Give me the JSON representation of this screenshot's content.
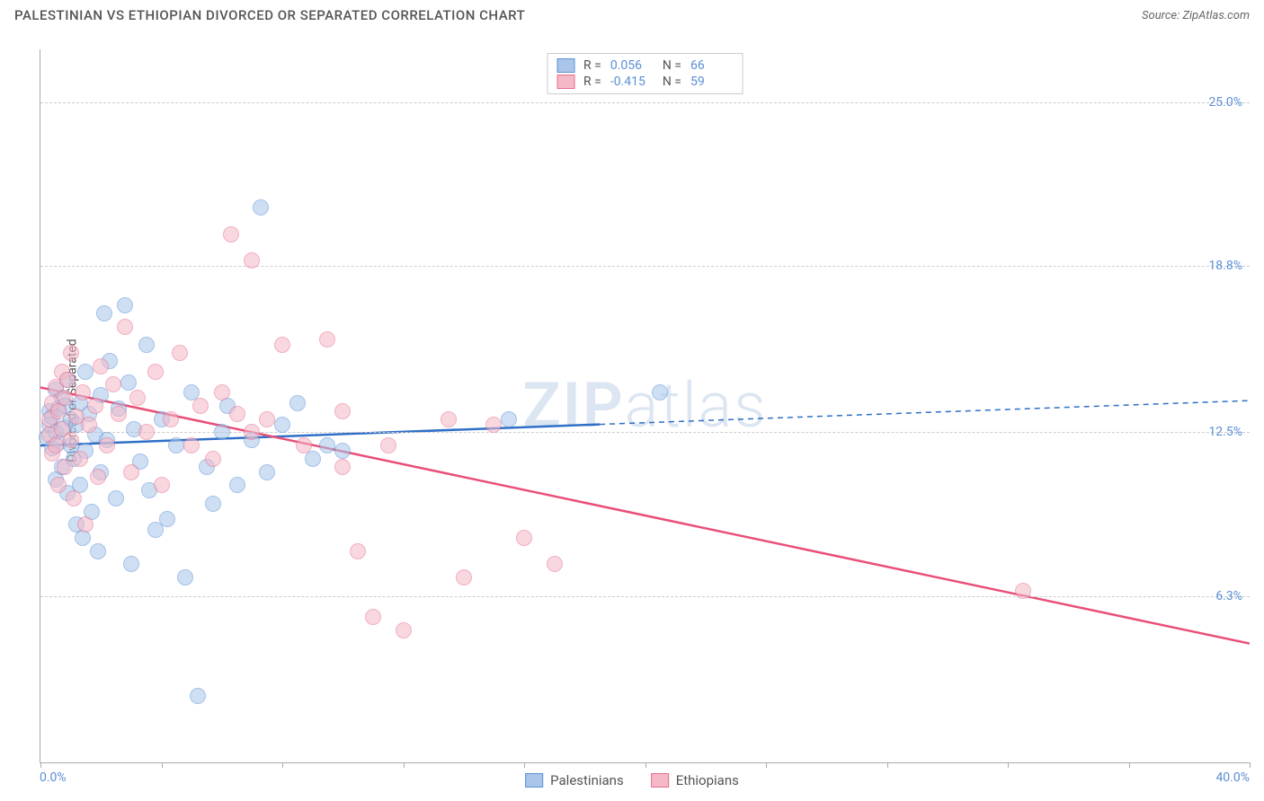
{
  "header": {
    "title": "PALESTINIAN VS ETHIOPIAN DIVORCED OR SEPARATED CORRELATION CHART",
    "source_prefix": "Source: ",
    "source_name": "ZipAtlas.com"
  },
  "chart": {
    "type": "scatter",
    "ylabel": "Divorced or Separated",
    "xlim": [
      0,
      40
    ],
    "ylim": [
      0,
      27
    ],
    "x_axis_min_label": "0.0%",
    "x_axis_max_label": "40.0%",
    "y_ticks": [
      {
        "v": 6.3,
        "label": "6.3%"
      },
      {
        "v": 12.5,
        "label": "12.5%"
      },
      {
        "v": 18.8,
        "label": "18.8%"
      },
      {
        "v": 25.0,
        "label": "25.0%"
      }
    ],
    "x_tick_positions": [
      0,
      4,
      8,
      12,
      16,
      20,
      24,
      28,
      32,
      36,
      40
    ],
    "grid_color": "#cccccc",
    "axis_color": "#aaaaaa",
    "tick_label_color": "#5b8fd6",
    "background_color": "#ffffff",
    "marker_radius": 9,
    "marker_opacity": 0.55,
    "series": [
      {
        "name": "Palestinians",
        "color_fill": "#a9c6ea",
        "color_stroke": "#5b8fd6",
        "R": "0.056",
        "N": "66",
        "regression": {
          "x1": 0,
          "y1": 12.0,
          "x_solid_end": 18.5,
          "y_solid_end": 12.8,
          "x2": 40,
          "y2": 13.7,
          "stroke": "#2f6fc7",
          "width": 2.5
        },
        "points": [
          [
            0.2,
            12.3
          ],
          [
            0.3,
            13.3
          ],
          [
            0.3,
            12.8
          ],
          [
            0.4,
            11.9
          ],
          [
            0.4,
            13.1
          ],
          [
            0.5,
            12.5
          ],
          [
            0.5,
            14.1
          ],
          [
            0.5,
            10.7
          ],
          [
            0.6,
            13.4
          ],
          [
            0.6,
            12.1
          ],
          [
            0.7,
            13.8
          ],
          [
            0.7,
            11.2
          ],
          [
            0.8,
            12.7
          ],
          [
            0.8,
            13.5
          ],
          [
            0.9,
            10.2
          ],
          [
            0.9,
            14.5
          ],
          [
            1.0,
            12.0
          ],
          [
            1.0,
            13.0
          ],
          [
            1.1,
            11.5
          ],
          [
            1.2,
            12.8
          ],
          [
            1.2,
            9.0
          ],
          [
            1.3,
            13.6
          ],
          [
            1.3,
            10.5
          ],
          [
            1.4,
            8.5
          ],
          [
            1.5,
            14.8
          ],
          [
            1.5,
            11.8
          ],
          [
            1.6,
            13.2
          ],
          [
            1.7,
            9.5
          ],
          [
            1.8,
            12.4
          ],
          [
            1.9,
            8.0
          ],
          [
            2.0,
            13.9
          ],
          [
            2.0,
            11.0
          ],
          [
            2.1,
            17.0
          ],
          [
            2.2,
            12.2
          ],
          [
            2.3,
            15.2
          ],
          [
            2.5,
            10.0
          ],
          [
            2.6,
            13.4
          ],
          [
            2.8,
            17.3
          ],
          [
            2.9,
            14.4
          ],
          [
            3.0,
            7.5
          ],
          [
            3.1,
            12.6
          ],
          [
            3.3,
            11.4
          ],
          [
            3.5,
            15.8
          ],
          [
            3.6,
            10.3
          ],
          [
            3.8,
            8.8
          ],
          [
            4.0,
            13.0
          ],
          [
            4.2,
            9.2
          ],
          [
            4.5,
            12.0
          ],
          [
            4.8,
            7.0
          ],
          [
            5.0,
            14.0
          ],
          [
            5.2,
            2.5
          ],
          [
            5.5,
            11.2
          ],
          [
            5.7,
            9.8
          ],
          [
            6.0,
            12.5
          ],
          [
            6.2,
            13.5
          ],
          [
            6.5,
            10.5
          ],
          [
            7.0,
            12.2
          ],
          [
            7.3,
            21.0
          ],
          [
            7.5,
            11.0
          ],
          [
            8.0,
            12.8
          ],
          [
            8.5,
            13.6
          ],
          [
            9.0,
            11.5
          ],
          [
            9.5,
            12.0
          ],
          [
            10.0,
            11.8
          ],
          [
            15.5,
            13.0
          ],
          [
            20.5,
            14.0
          ]
        ]
      },
      {
        "name": "Ethiopians",
        "color_fill": "#f5b8c6",
        "color_stroke": "#e66f8f",
        "R": "-0.415",
        "N": "59",
        "regression": {
          "x1": 0,
          "y1": 14.2,
          "x_solid_end": 40,
          "y_solid_end": 4.5,
          "x2": 40,
          "y2": 4.5,
          "stroke": "#e94f77",
          "width": 2.5
        },
        "points": [
          [
            0.3,
            13.0
          ],
          [
            0.3,
            12.4
          ],
          [
            0.4,
            13.6
          ],
          [
            0.4,
            11.7
          ],
          [
            0.5,
            14.2
          ],
          [
            0.5,
            12.0
          ],
          [
            0.6,
            13.3
          ],
          [
            0.6,
            10.5
          ],
          [
            0.7,
            14.8
          ],
          [
            0.7,
            12.6
          ],
          [
            0.8,
            11.2
          ],
          [
            0.8,
            13.8
          ],
          [
            0.9,
            14.5
          ],
          [
            1.0,
            12.2
          ],
          [
            1.0,
            15.5
          ],
          [
            1.1,
            10.0
          ],
          [
            1.2,
            13.1
          ],
          [
            1.3,
            11.5
          ],
          [
            1.4,
            14.0
          ],
          [
            1.5,
            9.0
          ],
          [
            1.6,
            12.8
          ],
          [
            1.8,
            13.5
          ],
          [
            1.9,
            10.8
          ],
          [
            2.0,
            15.0
          ],
          [
            2.2,
            12.0
          ],
          [
            2.4,
            14.3
          ],
          [
            2.6,
            13.2
          ],
          [
            2.8,
            16.5
          ],
          [
            3.0,
            11.0
          ],
          [
            3.2,
            13.8
          ],
          [
            3.5,
            12.5
          ],
          [
            3.8,
            14.8
          ],
          [
            4.0,
            10.5
          ],
          [
            4.3,
            13.0
          ],
          [
            4.6,
            15.5
          ],
          [
            5.0,
            12.0
          ],
          [
            5.3,
            13.5
          ],
          [
            5.7,
            11.5
          ],
          [
            6.0,
            14.0
          ],
          [
            6.3,
            20.0
          ],
          [
            6.5,
            13.2
          ],
          [
            7.0,
            19.0
          ],
          [
            7.0,
            12.5
          ],
          [
            7.5,
            13.0
          ],
          [
            8.0,
            15.8
          ],
          [
            8.7,
            12.0
          ],
          [
            9.5,
            16.0
          ],
          [
            10.0,
            13.3
          ],
          [
            10.0,
            11.2
          ],
          [
            10.5,
            8.0
          ],
          [
            11.0,
            5.5
          ],
          [
            11.5,
            12.0
          ],
          [
            12.0,
            5.0
          ],
          [
            13.5,
            13.0
          ],
          [
            14.0,
            7.0
          ],
          [
            15.0,
            12.8
          ],
          [
            16.0,
            8.5
          ],
          [
            17.0,
            7.5
          ],
          [
            32.5,
            6.5
          ]
        ]
      }
    ],
    "watermark": {
      "text_bold": "ZIP",
      "text_light": "atlas",
      "color": "#dce6f2"
    },
    "legend_top": {
      "r_label": "R =",
      "n_label": "N ="
    }
  }
}
